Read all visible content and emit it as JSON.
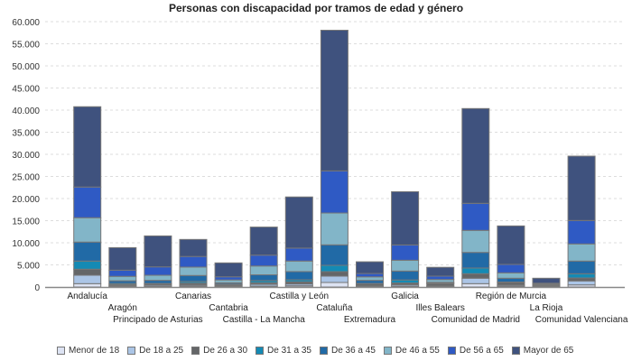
{
  "chart_data": {
    "type": "bar",
    "stacked": true,
    "title": "Personas con discapacidad por tramos de edad y género",
    "xlabel": "",
    "ylabel": "",
    "ylim": [
      0,
      60000
    ],
    "yticks": [
      "0",
      "5.000",
      "10.000",
      "15.000",
      "20.000",
      "25.000",
      "30.000",
      "35.000",
      "40.000",
      "45.000",
      "50.000",
      "55.000",
      "60.000"
    ],
    "grid": true,
    "legend_position": "bottom",
    "categories": [
      "Andalucía",
      "Aragón",
      "Principado de Asturias",
      "Canarias",
      "Cantabria",
      "Castilla - La Mancha",
      "Castilla y León",
      "Cataluña",
      "Extremadura",
      "Galicia",
      "Illes Balears",
      "Comunidad de Madrid",
      "Región de Murcia",
      "La Rioja",
      "Comunidad Valenciana"
    ],
    "series": [
      {
        "name": "Menor de 18",
        "color": "#dde3f3",
        "values": [
          755,
          100,
          150,
          200,
          100,
          200,
          270,
          1020,
          100,
          200,
          100,
          755,
          200,
          50,
          470
        ]
      },
      {
        "name": "De 18 a 25",
        "color": "#abc5e6",
        "values": [
          1900,
          200,
          250,
          250,
          150,
          400,
          400,
          1430,
          150,
          300,
          150,
          1225,
          250,
          80,
          900
        ]
      },
      {
        "name": "De 26 a 30",
        "color": "#646668",
        "values": [
          1370,
          250,
          300,
          400,
          250,
          350,
          500,
          1020,
          450,
          400,
          450,
          1020,
          570,
          150,
          670
        ]
      },
      {
        "name": "De 31 a 35",
        "color": "#148ab4",
        "values": [
          1840,
          250,
          100,
          400,
          150,
          500,
          470,
          1430,
          100,
          700,
          150,
          1290,
          100,
          100,
          960
        ]
      },
      {
        "name": "De 36 a 45",
        "color": "#216aa6",
        "values": [
          4290,
          600,
          700,
          1350,
          300,
          1300,
          1840,
          4630,
          700,
          2000,
          200,
          3530,
          860,
          150,
          2860
        ]
      },
      {
        "name": "De 46 a 55",
        "color": "#82b5c8",
        "values": [
          5510,
          1000,
          1150,
          1900,
          650,
          2000,
          2390,
          7200,
          800,
          2450,
          650,
          4980,
          1220,
          220,
          3880
        ]
      },
      {
        "name": "De 56 a 65",
        "color": "#2f5ac4",
        "values": [
          6940,
          1400,
          1900,
          2400,
          700,
          2450,
          2920,
          9530,
          750,
          3450,
          750,
          6120,
          1900,
          100,
          5300
        ]
      },
      {
        "name": "Mayor de 65",
        "color": "#3f527e",
        "values": [
          18160,
          5100,
          7000,
          3850,
          3150,
          6350,
          11570,
          31800,
          2650,
          12050,
          2000,
          21430,
          8710,
          1130,
          14550
        ]
      }
    ]
  }
}
